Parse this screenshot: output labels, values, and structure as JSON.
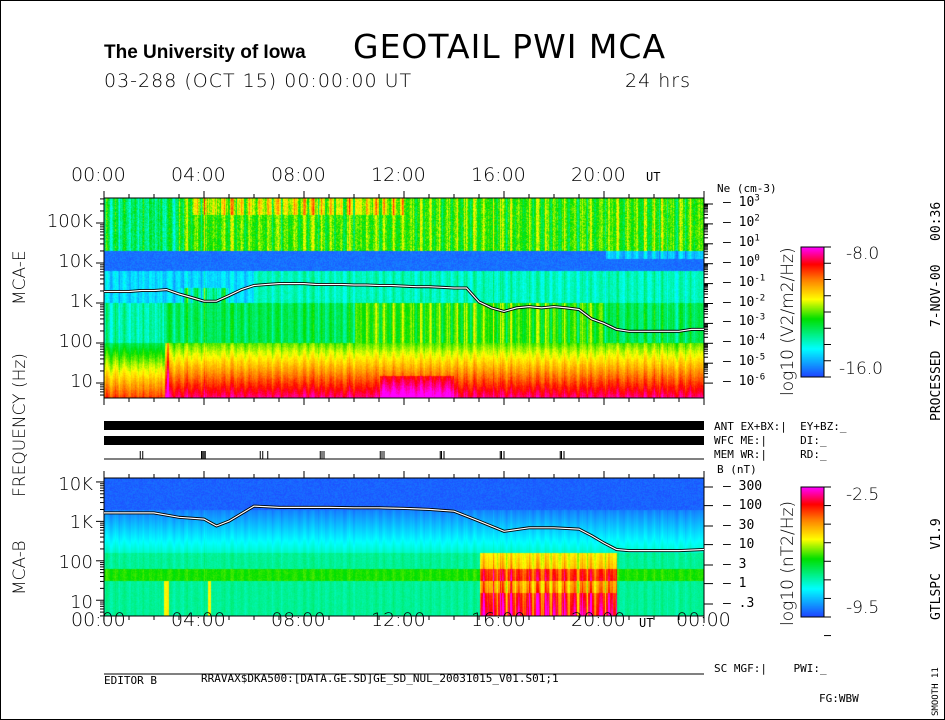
{
  "header": {
    "institution": "The University of Iowa",
    "instrument": "GEOTAIL PWI MCA",
    "date_line": "03-288 (OCT 15) 00:00:00 UT",
    "duration": "24 hrs"
  },
  "side": {
    "processed": "PROCESSED   7-NOV-00   00:36",
    "version": "GTLSPC   V1.9",
    "smooth": "SMOOTH 11"
  },
  "left_labels": {
    "mca_e": "MCA-E",
    "freq": "FREQUENCY (Hz)",
    "mca_b": "MCA-B"
  },
  "status": {
    "ant": "ANT EX+BX:|  EY+BZ:_",
    "wfc": "WFC ME:|     DI:_",
    "mem": "MEM WR:|     RD:_",
    "sc": "SC MGF:|    PWI:_"
  },
  "footer": {
    "editor": "EDITOR B",
    "file": "RRAVAX$DKA500:[DATA.GE.SD]GE_SD_NUL_20031015_V01.S01;1",
    "fg": "FG:WBW"
  },
  "chart_data": [
    {
      "type": "heatmap",
      "panel": "MCA-E",
      "x_ticks": [
        "00:00",
        "04:00",
        "08:00",
        "12:00",
        "16:00",
        "20:00"
      ],
      "x_unit": "UT",
      "ylabel": "FREQUENCY (Hz)",
      "y_scale": "log",
      "y_ticks": [
        "10",
        "100",
        "1K",
        "10K",
        "100K"
      ],
      "colorbar": {
        "label": "log10 (V2/m2/Hz)",
        "max": "-8.0",
        "min": "-16.0"
      },
      "colormap": [
        "#2040ff",
        "#00ffff",
        "#00e000",
        "#ffff00",
        "#ff8000",
        "#ff0000",
        "#ff00ff"
      ],
      "right_axis": {
        "label": "Ne (cm-3)",
        "ticks": [
          "10^3",
          "10^2",
          "10^1",
          "10^0",
          "10^-1",
          "10^-2",
          "10^-3",
          "10^-4",
          "10^-5",
          "10^-6"
        ]
      },
      "trace": {
        "name": "Ne",
        "t_hours": [
          0,
          0.5,
          1,
          1.5,
          2,
          2.5,
          3,
          3.5,
          4,
          4.5,
          5,
          5.5,
          6,
          6.5,
          7,
          7.5,
          8,
          8.5,
          9,
          9.5,
          10,
          10.5,
          11,
          11.5,
          12,
          12.5,
          13,
          13.5,
          14,
          14.5,
          15,
          15.5,
          16,
          16.5,
          17,
          17.5,
          18,
          18.5,
          19,
          19.5,
          20,
          20.5,
          21,
          21.5,
          22,
          22.5,
          23,
          23.5,
          24
        ],
        "values": [
          0.04,
          0.04,
          0.04,
          0.045,
          0.045,
          0.05,
          0.03,
          0.02,
          0.013,
          0.013,
          0.025,
          0.05,
          0.08,
          0.09,
          0.1,
          0.1,
          0.1,
          0.09,
          0.09,
          0.09,
          0.085,
          0.085,
          0.08,
          0.08,
          0.075,
          0.07,
          0.07,
          0.065,
          0.06,
          0.06,
          0.012,
          0.006,
          0.004,
          0.006,
          0.007,
          0.006,
          0.007,
          0.006,
          0.005,
          0.0017,
          0.001,
          0.0005,
          0.0004,
          0.0004,
          0.0004,
          0.0004,
          0.0004,
          0.0005,
          0.0005
        ]
      }
    },
    {
      "type": "heatmap",
      "panel": "MCA-B",
      "x_ticks": [
        "00:00",
        "04:00",
        "08:00",
        "12:00",
        "16:00",
        "20:00",
        "00:00"
      ],
      "x_unit": "UT",
      "y_scale": "log",
      "y_ticks": [
        "10",
        "100",
        "1K",
        "10K"
      ],
      "colorbar": {
        "label": "log10 (nT2/Hz)",
        "max": "-2.5",
        "min": "-9.5"
      },
      "right_axis": {
        "label": "B (nT)",
        "ticks": [
          "300",
          "100",
          "30",
          "10",
          "3",
          "1",
          ".3"
        ]
      },
      "trace": {
        "name": "B",
        "t_hours": [
          0,
          1,
          2,
          3,
          4,
          4.5,
          5,
          6,
          7,
          8,
          9,
          10,
          11,
          12,
          13,
          14,
          15,
          16,
          17,
          18,
          19,
          19.5,
          20,
          20.5,
          21,
          22,
          23,
          24
        ],
        "values": [
          65,
          65,
          65,
          50,
          45,
          30,
          40,
          97,
          90,
          90,
          90,
          88,
          88,
          85,
          80,
          72,
          40,
          22,
          27,
          27,
          25,
          17,
          11,
          7.5,
          7,
          7,
          7,
          7.5
        ]
      }
    }
  ],
  "mode_bars": {
    "ant_on": true,
    "wfc_on": true,
    "mem_marks_hours": [
      1.45,
      1.55,
      3.9,
      3.95,
      4.0,
      4.05,
      6.25,
      6.35,
      6.55,
      8.65,
      8.72,
      8.8,
      11.05,
      11.12,
      11.2,
      13.45,
      13.5,
      13.6,
      15.85,
      15.9,
      16.0,
      18.25,
      18.3,
      18.4
    ]
  }
}
